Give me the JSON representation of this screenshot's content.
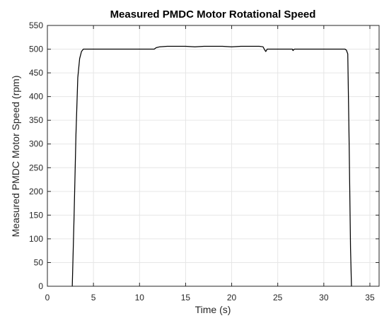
{
  "chart_data": {
    "type": "line",
    "title": "Measured PMDC Motor Rotational Speed",
    "xlabel": "Time (s)",
    "ylabel": "Measured PMDC Motor Speed (rpm)",
    "xlim": [
      0,
      36
    ],
    "ylim": [
      0,
      550
    ],
    "x_ticks": [
      0,
      5,
      10,
      15,
      20,
      25,
      30,
      35
    ],
    "y_ticks": [
      0,
      50,
      100,
      150,
      200,
      250,
      300,
      350,
      400,
      450,
      500,
      550
    ],
    "grid": true,
    "colors": {
      "line": "#000000",
      "grid": "#e6e6e6",
      "axis": "#262626",
      "background": "#ffffff"
    },
    "series": [
      {
        "x": [
          2.7,
          2.9,
          3.1,
          3.3,
          3.5,
          3.7,
          3.9,
          4.2,
          5,
          6,
          7,
          8,
          9,
          10,
          11,
          11.6,
          11.8,
          12.2,
          13,
          14,
          15,
          16,
          17,
          18,
          19,
          20,
          21,
          22,
          23,
          23.4,
          23.6,
          23.7,
          23.85,
          24.2,
          25,
          26,
          26.6,
          26.65,
          26.8,
          27.5,
          28,
          29,
          30,
          31,
          32,
          32.3,
          32.45,
          32.6,
          32.75,
          32.9,
          33.0
        ],
        "y": [
          0,
          150,
          320,
          440,
          480,
          495,
          500,
          500,
          500,
          500,
          500,
          500,
          500,
          500,
          500,
          500,
          503,
          505,
          506,
          506,
          506,
          505,
          506,
          506,
          506,
          505,
          506,
          506,
          506,
          505,
          498,
          495,
          500,
          500,
          500,
          500,
          500,
          497,
          500,
          500,
          500,
          500,
          500,
          500,
          500,
          500,
          498,
          490,
          300,
          80,
          0
        ]
      }
    ]
  }
}
